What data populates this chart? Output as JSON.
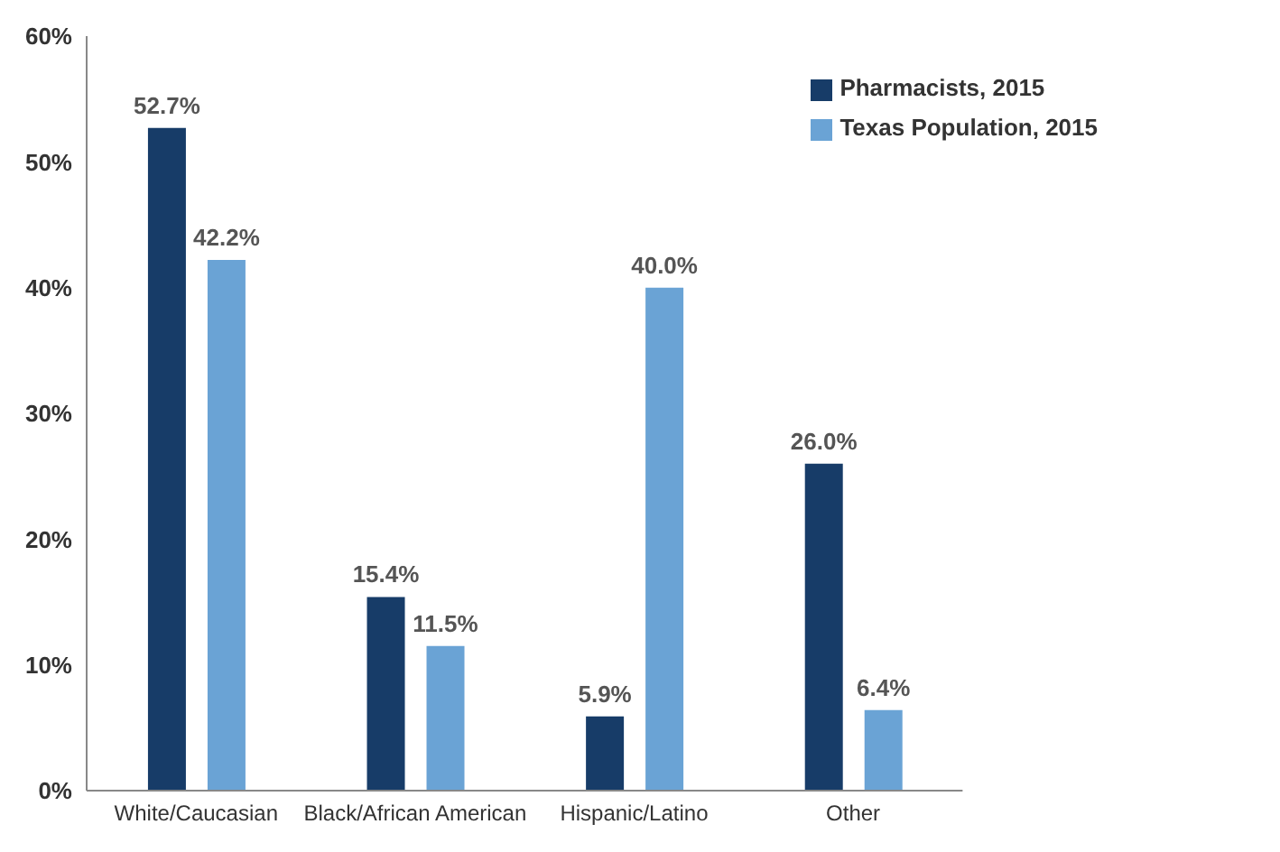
{
  "chart_data": {
    "type": "bar",
    "categories": [
      "White/Caucasian",
      "Black/African American",
      "Hispanic/Latino",
      "Other"
    ],
    "series": [
      {
        "name": "Pharmacists, 2015",
        "color": "#173c68",
        "values": [
          52.7,
          15.4,
          5.9,
          26.0
        ],
        "value_labels": [
          "52.7%",
          "15.4%",
          "5.9%",
          "26.0%"
        ]
      },
      {
        "name": "Texas Population, 2015",
        "color": "#6aa3d5",
        "values": [
          42.2,
          11.5,
          40.0,
          6.4
        ],
        "value_labels": [
          "42.2%",
          "11.5%",
          "40.0%",
          "6.4%"
        ]
      }
    ],
    "ylim": [
      0,
      60
    ],
    "yticks": [
      {
        "value": 0,
        "label": "0%"
      },
      {
        "value": 10,
        "label": "10%"
      },
      {
        "value": 20,
        "label": "20%"
      },
      {
        "value": 30,
        "label": "30%"
      },
      {
        "value": 40,
        "label": "40%"
      },
      {
        "value": 50,
        "label": "50%"
      },
      {
        "value": 60,
        "label": "60%"
      }
    ],
    "grid": false,
    "legend": "top right"
  }
}
